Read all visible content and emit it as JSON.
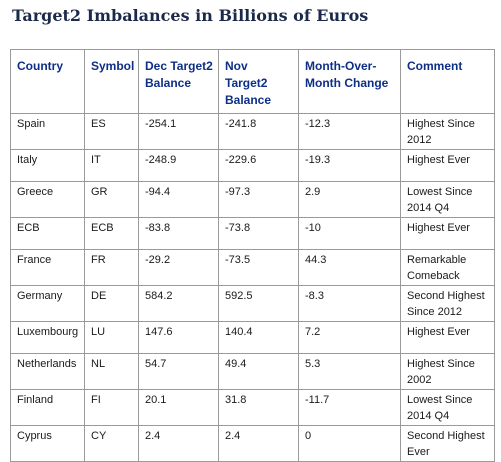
{
  "title": "Target2 Imbalances in Billions of Euros",
  "table": {
    "headers": [
      "Country",
      "Symbol",
      "Dec Target2 Balance",
      "Nov Target2 Balance",
      "Month-Over-Month Change",
      "Comment"
    ],
    "rows": [
      [
        "Spain",
        "ES",
        "-254.1",
        "-241.8",
        "-12.3",
        "Highest Since 2012"
      ],
      [
        "Italy",
        "IT",
        "-248.9",
        "-229.6",
        "-19.3",
        "Highest Ever"
      ],
      [
        "Greece",
        "GR",
        "-94.4",
        "-97.3",
        "2.9",
        "Lowest Since 2014 Q4"
      ],
      [
        "ECB",
        "ECB",
        "-83.8",
        "-73.8",
        "-10",
        "Highest Ever"
      ],
      [
        "France",
        "FR",
        "-29.2",
        "-73.5",
        "44.3",
        "Remarkable Comeback"
      ],
      [
        "Germany",
        "DE",
        "584.2",
        "592.5",
        "-8.3",
        "Second Highest Since 2012"
      ],
      [
        "Luxembourg",
        "LU",
        "147.6",
        "140.4",
        "7.2",
        "Highest Ever"
      ],
      [
        "Netherlands",
        "NL",
        "54.7",
        "49.4",
        "5.3",
        "Highest Since 2002"
      ],
      [
        "Finland",
        "FI",
        "20.1",
        "31.8",
        "-11.7",
        "Lowest Since 2014 Q4"
      ],
      [
        "Cyprus",
        "CY",
        "2.4",
        "2.4",
        "0",
        "Second Highest Ever"
      ]
    ]
  }
}
